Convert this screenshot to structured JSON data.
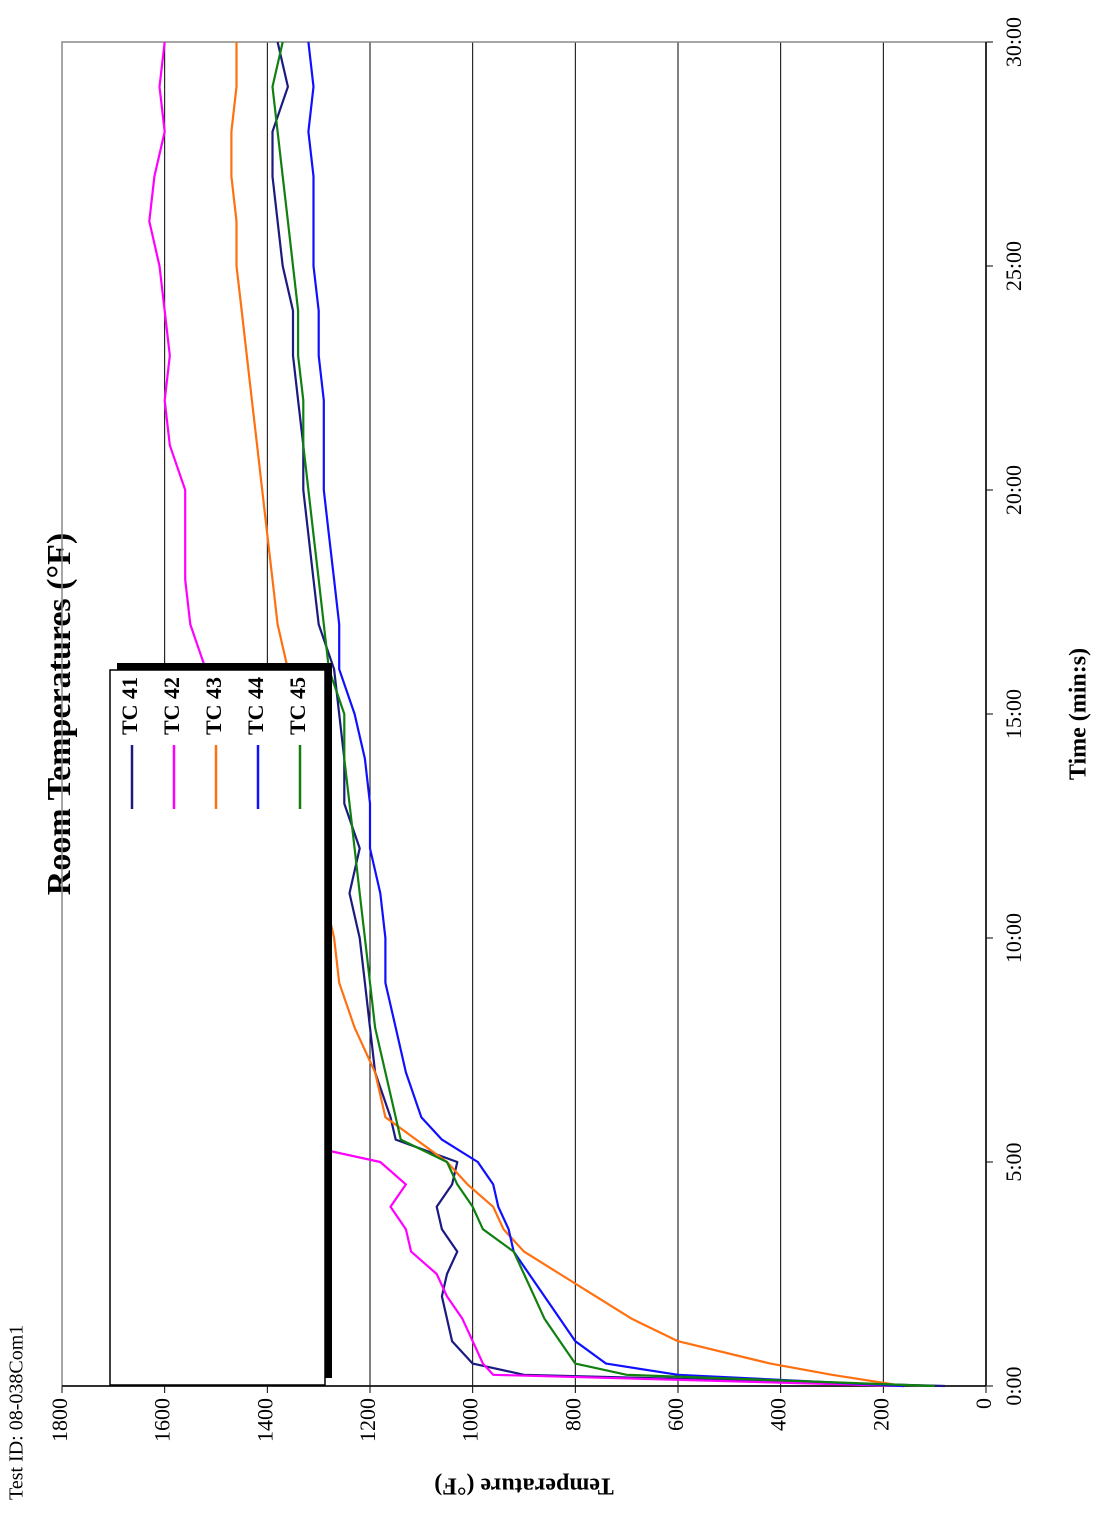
{
  "chart_data": {
    "type": "line",
    "title": "Room Temperatures (°F)",
    "annotation": "Test ID: 08-038Com1",
    "x_label": "Time (min:s)",
    "y_label": "Temperature (°F)",
    "x": [
      0,
      0.25,
      0.5,
      1,
      1.5,
      2,
      2.5,
      3,
      3.5,
      4,
      4.5,
      5,
      5.5,
      6,
      7,
      8,
      9,
      10,
      11,
      12,
      13,
      14,
      15,
      16,
      17,
      18,
      19,
      20,
      21,
      22,
      23,
      24,
      25,
      26,
      27,
      28,
      29,
      30
    ],
    "series": [
      {
        "name": "TC 41",
        "color": "#1a1a80",
        "values": [
          80,
          900,
          1000,
          1040,
          1050,
          1060,
          1050,
          1030,
          1060,
          1070,
          1040,
          1030,
          1150,
          1160,
          1190,
          1200,
          1210,
          1220,
          1240,
          1220,
          1250,
          1250,
          1260,
          1270,
          1300,
          1310,
          1320,
          1330,
          1330,
          1340,
          1350,
          1350,
          1370,
          1380,
          1390,
          1390,
          1360,
          1380
        ]
      },
      {
        "name": "TC 42",
        "color": "#ff00ff",
        "values": [
          160,
          960,
          980,
          1000,
          1020,
          1050,
          1070,
          1120,
          1130,
          1160,
          1130,
          1180,
          1380,
          1360,
          1370,
          1400,
          1390,
          1420,
          1440,
          1450,
          1460,
          1480,
          1470,
          1520,
          1550,
          1560,
          1560,
          1560,
          1590,
          1600,
          1590,
          1600,
          1610,
          1630,
          1620,
          1600,
          1610,
          1600
        ]
      },
      {
        "name": "TC 43",
        "color": "#ff7010",
        "values": [
          160,
          300,
          420,
          600,
          690,
          760,
          830,
          900,
          940,
          960,
          1010,
          1050,
          1110,
          1170,
          1190,
          1230,
          1260,
          1270,
          1290,
          1290,
          1300,
          1300,
          1310,
          1360,
          1380,
          1390,
          1400,
          1410,
          1420,
          1430,
          1440,
          1450,
          1460,
          1460,
          1470,
          1470,
          1460,
          1460
        ]
      },
      {
        "name": "TC 44",
        "color": "#1010ff",
        "values": [
          160,
          600,
          740,
          800,
          830,
          860,
          890,
          920,
          930,
          950,
          960,
          990,
          1060,
          1100,
          1130,
          1150,
          1170,
          1170,
          1180,
          1200,
          1200,
          1210,
          1230,
          1260,
          1260,
          1270,
          1280,
          1290,
          1290,
          1290,
          1300,
          1300,
          1310,
          1310,
          1310,
          1320,
          1310,
          1320
        ]
      },
      {
        "name": "TC 45",
        "color": "#108010",
        "values": [
          100,
          700,
          800,
          830,
          860,
          880,
          900,
          920,
          980,
          1000,
          1030,
          1050,
          1140,
          1150,
          1170,
          1190,
          1200,
          1210,
          1220,
          1230,
          1240,
          1250,
          1250,
          1280,
          1290,
          1300,
          1310,
          1320,
          1330,
          1330,
          1340,
          1340,
          1350,
          1360,
          1370,
          1380,
          1390,
          1370
        ]
      }
    ],
    "xlim": [
      0,
      30
    ],
    "xticks": [
      {
        "value": 0,
        "label": "0:00"
      },
      {
        "value": 5,
        "label": "5:00"
      },
      {
        "value": 10,
        "label": "10:00"
      },
      {
        "value": 15,
        "label": "15:00"
      },
      {
        "value": 20,
        "label": "20:00"
      },
      {
        "value": 25,
        "label": "25:00"
      },
      {
        "value": 30,
        "label": "30:00"
      }
    ],
    "ylim": [
      0,
      1800
    ],
    "yticks": [
      0,
      200,
      400,
      600,
      800,
      1000,
      1200,
      1400,
      1600,
      1800
    ],
    "grid": true,
    "legend": "upper left"
  }
}
